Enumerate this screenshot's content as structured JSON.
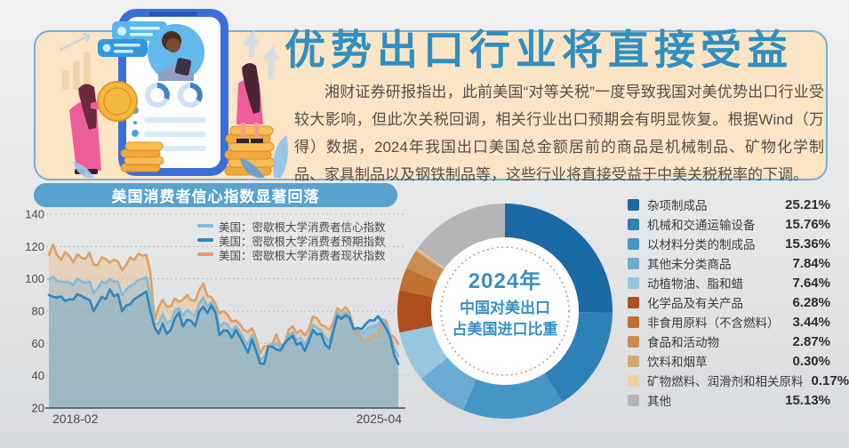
{
  "hero": {
    "title": "优势出口行业将直接受益",
    "paragraph": "湘财证券研报指出，此前美国“对等关税”一度导致我国对美优势出口行业受较大影响，但此次关税回调，相关行业出口预期会有明显恢复。根据Wind（万得）数据，2024年我国出口美国总金额居前的商品是机械制品、矿物化学制品、家具制品以及钢铁制品等，这些行业将直接受益于中美关税税率的下调。",
    "title_color": "#2e8fc2",
    "panel_bg": "#fce5c5",
    "panel_border": "#74aed8"
  },
  "line_chart": {
    "banner": "美国消费者信心指数显著回落",
    "y_ticks": [
      140,
      120,
      100,
      80,
      60,
      40,
      20
    ],
    "x_label_left": "2018-02",
    "x_label_right": "2025-04"
  },
  "donut": {
    "center_line1": "2024年",
    "center_line2": "中国对美出口",
    "center_line3": "占美国进口比重"
  },
  "chart_data": [
    {
      "type": "line",
      "title": "美国消费者信心指数显著回落",
      "x_start": "2018-02",
      "x_end": "2025-04",
      "frequency": "monthly",
      "ylim": [
        20,
        140
      ],
      "grid": true,
      "legend_position": "top-center",
      "series": [
        {
          "name": "美国：密歇根大学消费者信心指数",
          "color": "#83bada",
          "fill": "rgba(131,186,218,0.42)",
          "values": [
            99.7,
            101.4,
            98.8,
            98.0,
            98.2,
            97.9,
            96.2,
            100.1,
            98.6,
            97.5,
            98.3,
            91.2,
            93.8,
            98.4,
            97.2,
            100.0,
            98.2,
            98.4,
            89.8,
            93.2,
            95.5,
            96.8,
            99.3,
            99.8,
            101.0,
            89.1,
            71.8,
            72.3,
            78.1,
            72.5,
            74.1,
            80.4,
            81.8,
            76.9,
            80.7,
            79.0,
            76.8,
            84.9,
            88.3,
            82.9,
            85.5,
            81.2,
            70.3,
            72.8,
            71.7,
            67.4,
            70.6,
            67.2,
            62.8,
            59.4,
            65.2,
            58.4,
            50.0,
            51.5,
            58.2,
            58.6,
            59.9,
            56.8,
            59.7,
            64.9,
            67.0,
            62.0,
            63.5,
            59.2,
            64.4,
            71.6,
            69.5,
            68.1,
            63.8,
            61.3,
            69.7,
            79.0,
            76.9,
            79.4,
            77.2,
            69.1,
            68.2,
            66.4,
            67.9,
            70.1,
            70.5,
            71.8,
            74.0,
            71.7,
            64.7,
            57.0,
            52.2
          ]
        },
        {
          "name": "美国：密歇根大学消费者预期指数",
          "color": "#2f86bd",
          "fill": "rgba(47,134,189,0.20)",
          "values": [
            90.0,
            88.8,
            88.4,
            89.1,
            86.3,
            87.3,
            87.1,
            90.5,
            89.3,
            88.1,
            87.0,
            79.9,
            84.4,
            88.8,
            87.4,
            93.5,
            89.3,
            90.5,
            79.9,
            83.4,
            84.2,
            87.3,
            88.9,
            90.5,
            92.1,
            79.7,
            70.1,
            65.9,
            72.3,
            65.9,
            68.5,
            75.6,
            79.2,
            70.5,
            74.6,
            74.0,
            70.7,
            79.7,
            82.7,
            78.8,
            83.5,
            79.0,
            65.1,
            68.1,
            67.9,
            63.5,
            68.3,
            64.1,
            59.4,
            54.3,
            62.5,
            55.2,
            47.5,
            47.3,
            58.0,
            58.0,
            56.2,
            55.6,
            59.9,
            62.7,
            64.7,
            59.2,
            60.5,
            55.4,
            61.5,
            68.3,
            65.5,
            66.0,
            59.3,
            56.8,
            67.4,
            77.1,
            75.2,
            77.4,
            76.0,
            68.8,
            69.6,
            68.8,
            72.1,
            74.4,
            74.1,
            76.9,
            73.3,
            69.3,
            64.0,
            52.6,
            47.3
          ]
        },
        {
          "name": "美国：密歇根大学消费者现状指数",
          "color": "#dda167",
          "fill": "rgba(235,186,128,0.45)",
          "values": [
            114.9,
            121.2,
            114.9,
            111.8,
            116.5,
            114.4,
            110.3,
            115.2,
            113.1,
            112.3,
            116.1,
            108.8,
            108.5,
            113.3,
            112.3,
            110.0,
            111.9,
            110.7,
            105.3,
            108.5,
            113.2,
            111.6,
            115.5,
            114.4,
            114.8,
            103.7,
            74.3,
            82.3,
            87.1,
            82.8,
            82.9,
            87.8,
            85.9,
            87.0,
            90.0,
            86.7,
            86.2,
            93.0,
            97.2,
            89.4,
            88.6,
            84.5,
            78.5,
            80.1,
            77.7,
            73.6,
            74.2,
            72.0,
            68.2,
            67.2,
            69.4,
            63.3,
            53.8,
            58.1,
            58.6,
            59.7,
            65.6,
            58.8,
            59.4,
            68.4,
            70.7,
            66.3,
            68.2,
            64.9,
            69.0,
            76.6,
            75.7,
            71.4,
            70.6,
            68.3,
            73.3,
            81.9,
            79.4,
            82.5,
            79.0,
            69.6,
            65.9,
            62.7,
            61.3,
            63.3,
            64.9,
            63.9,
            75.1,
            74.0,
            65.7,
            63.8,
            59.8
          ]
        }
      ]
    },
    {
      "type": "pie",
      "title": "2024年中国对美出口占美国进口比重",
      "donut": true,
      "start_angle_deg": -90,
      "direction": "clockwise",
      "items": [
        {
          "label": "杂项制成品",
          "value": 25.21,
          "pct": "25.21%",
          "color": "#1a6aa6"
        },
        {
          "label": "机械和交通运输设备",
          "value": 15.76,
          "pct": "15.76%",
          "color": "#2e81b7"
        },
        {
          "label": "以材料分类的制成品",
          "value": 15.36,
          "pct": "15.36%",
          "color": "#4595c7"
        },
        {
          "label": "其他未分类商品",
          "value": 7.84,
          "pct": "7.84%",
          "color": "#6cacd4"
        },
        {
          "label": "动植物油、脂和蜡",
          "value": 7.64,
          "pct": "7.64%",
          "color": "#97c6e0"
        },
        {
          "label": "化学品及有关产品",
          "value": 6.28,
          "pct": "6.28%",
          "color": "#b04f1d"
        },
        {
          "label": "非食用原料（不含燃料）",
          "value": 3.44,
          "pct": "3.44%",
          "color": "#c0712f"
        },
        {
          "label": "食品和活动物",
          "value": 2.87,
          "pct": "2.87%",
          "color": "#cb8c50"
        },
        {
          "label": "饮料和烟草",
          "value": 0.3,
          "pct": "0.30%",
          "color": "#d8a96e"
        },
        {
          "label": "矿物燃料、润滑剂和相关原料",
          "value": 0.17,
          "pct": "0.17%",
          "color": "#eed2a0"
        },
        {
          "label": "其他",
          "value": 15.13,
          "pct": "15.13%",
          "color": "#b5b5b6"
        }
      ]
    }
  ]
}
